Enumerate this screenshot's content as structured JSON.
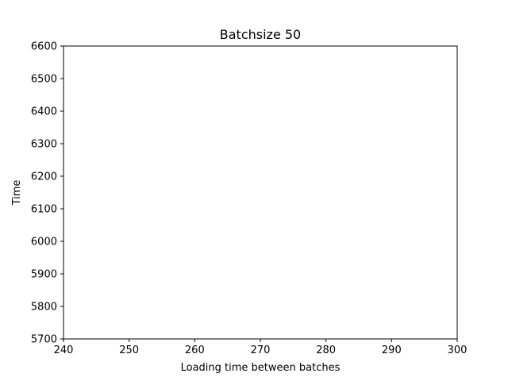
{
  "chart_data": {
    "type": "line",
    "title": "Batchsize 50",
    "xlabel": "Loading time between batches",
    "ylabel": "Time",
    "xlim": [
      240,
      300
    ],
    "ylim": [
      5700,
      6600
    ],
    "xticks": [
      240,
      250,
      260,
      270,
      280,
      290,
      300
    ],
    "yticks": [
      5700,
      5800,
      5900,
      6000,
      6100,
      6200,
      6300,
      6400,
      6500,
      6600
    ],
    "series": [],
    "grid": false,
    "legend": "none"
  },
  "colors": {
    "axes": "#000000",
    "background": "#ffffff"
  }
}
